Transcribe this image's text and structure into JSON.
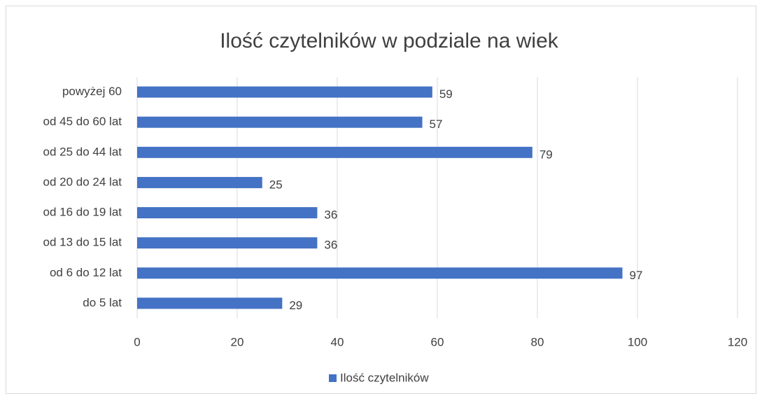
{
  "chart_data": {
    "type": "hbar",
    "title": "Ilość czytelników w podziale na wiek",
    "categories": [
      "powyżej 60",
      "od 45 do 60 lat",
      "od 25 do 44 lat",
      "od 20 do 24 lat",
      "od 16 do 19 lat",
      "od 13 do 15 lat",
      "od 6 do 12 lat",
      "do 5 lat"
    ],
    "series": [
      {
        "name": "Ilość czytelników",
        "color": "#4472c4",
        "values": [
          59,
          57,
          79,
          25,
          36,
          36,
          97,
          29
        ]
      }
    ],
    "xlim": [
      0,
      120
    ],
    "xticks": [
      0,
      20,
      40,
      60,
      80,
      100,
      120
    ],
    "grid": true,
    "legend": "bottom"
  }
}
